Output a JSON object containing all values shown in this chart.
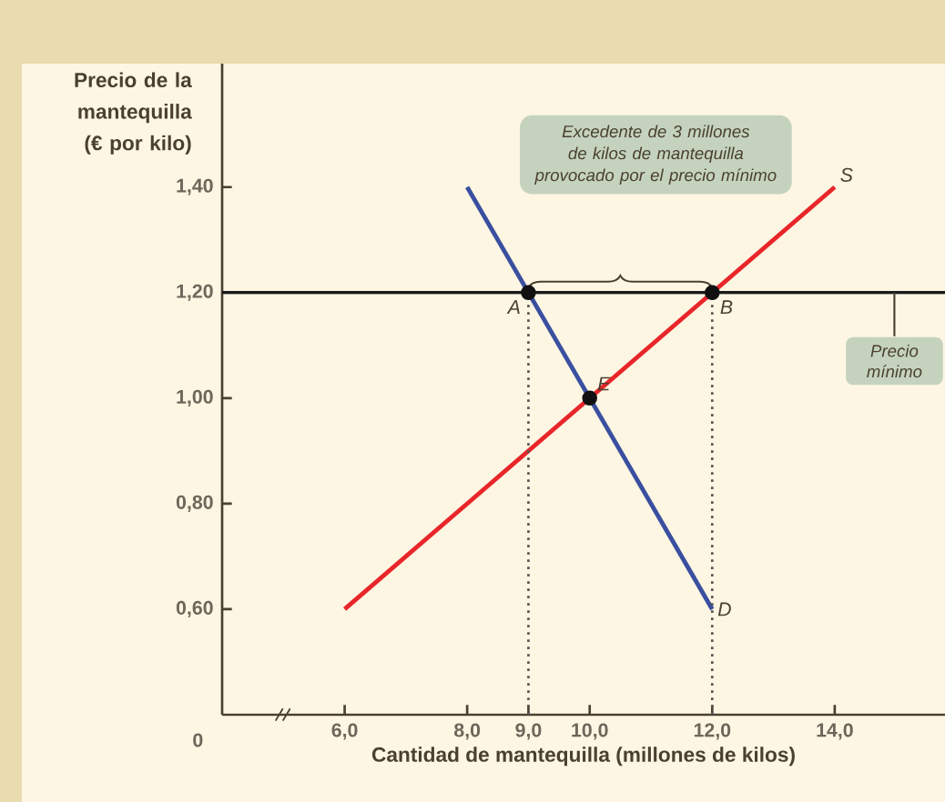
{
  "chart_data": {
    "type": "line",
    "xlabel": "Cantidad de mantequilla (millones de kilos)",
    "ylabel": "Precio de la mantequilla (€ por kilo)",
    "xlim": [
      4.0,
      15.8
    ],
    "ylim": [
      0.4,
      1.634
    ],
    "xticks": [
      {
        "value": 6,
        "label": "6,0"
      },
      {
        "value": 8,
        "label": "8,0"
      },
      {
        "value": 9,
        "label": "9,0"
      },
      {
        "value": 10,
        "label": "10,0"
      },
      {
        "value": 12,
        "label": "12,0"
      },
      {
        "value": 14,
        "label": "14,0"
      }
    ],
    "yticks": [
      {
        "value": 0.6,
        "label": "0,60"
      },
      {
        "value": 0.8,
        "label": "0,80"
      },
      {
        "value": 1.0,
        "label": "1,00"
      },
      {
        "value": 1.2,
        "label": "1,20"
      },
      {
        "value": 1.4,
        "label": "1,40"
      }
    ],
    "series": [
      {
        "name": "S",
        "color": "#e8262a",
        "x": [
          6,
          14
        ],
        "values": [
          0.6,
          1.4
        ]
      },
      {
        "name": "D",
        "color": "#3a4fa0",
        "x": [
          8,
          12
        ],
        "values": [
          1.4,
          0.6
        ]
      },
      {
        "color": "#555555",
        "line_style": "dotted",
        "x": [
          9,
          9
        ],
        "values": [
          0.4,
          1.2
        ]
      },
      {
        "color": "#555555",
        "line_style": "dotted",
        "x": [
          12,
          12
        ],
        "values": [
          0.4,
          1.2
        ]
      },
      {
        "type": "scatter",
        "marker": "circle",
        "color": "#111111",
        "x": [
          9,
          12,
          10
        ],
        "values": [
          1.2,
          1.2,
          1.0
        ]
      }
    ],
    "ref_lines": [
      {
        "axis": "y",
        "value": 1.2,
        "label": "Precio mínimo",
        "color": "#1a1a1a"
      }
    ],
    "annotations": [
      "Excedente de 3 millones de kilos de mantequilla provocado por el precio mínimo",
      "0",
      {
        "text": "A",
        "x": 9,
        "y": 1.2
      },
      {
        "text": "B",
        "x": 12,
        "y": 1.2
      },
      {
        "text": "E",
        "x": 10,
        "y": 1.0
      }
    ]
  }
}
